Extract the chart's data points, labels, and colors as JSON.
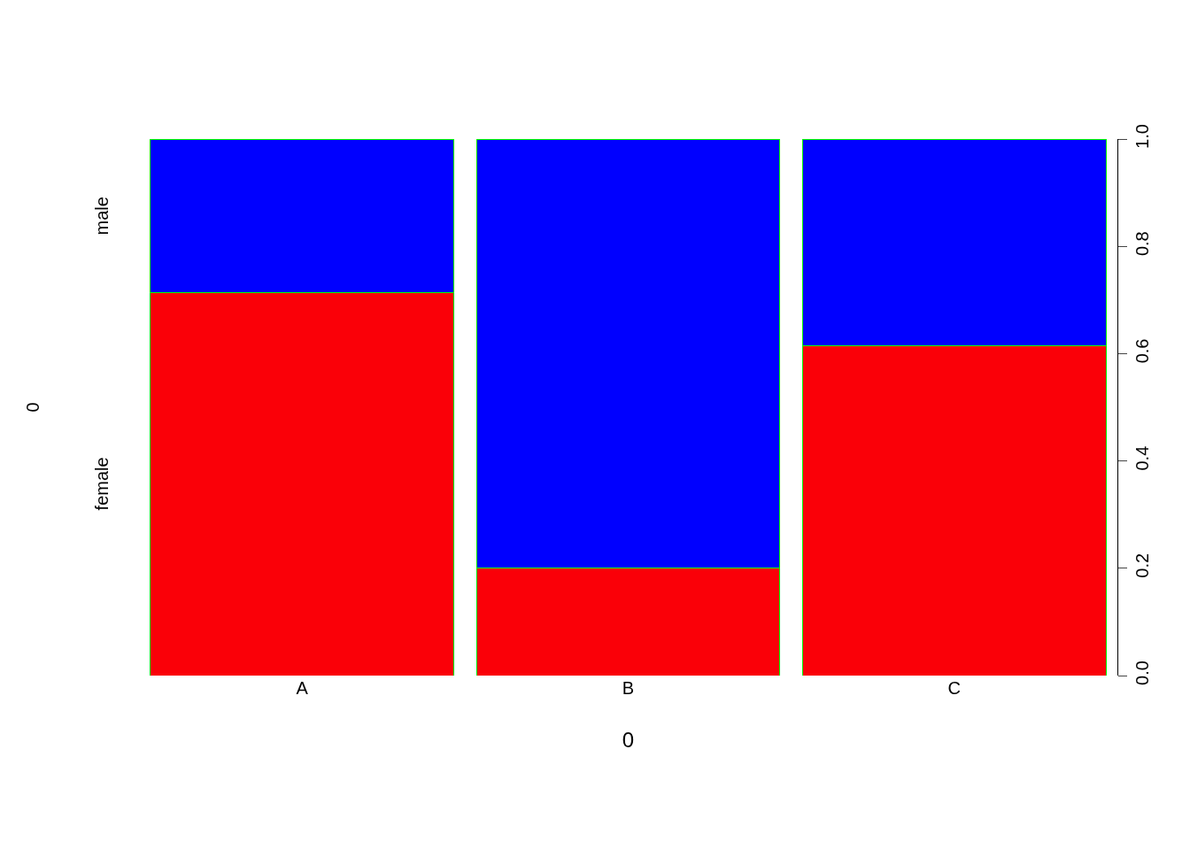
{
  "chart_data": {
    "type": "bar",
    "stacked": true,
    "xlabel": "0",
    "annotations": [
      "0"
    ],
    "categories": [
      "A",
      "B",
      "C"
    ],
    "series": [
      {
        "name": "female",
        "color": "#fa0008",
        "values": [
          0.714,
          0.2,
          0.615
        ]
      },
      {
        "name": "male",
        "color": "#0000ff",
        "values": [
          0.286,
          0.8,
          0.385
        ]
      }
    ],
    "ylim": [
      0,
      1
    ],
    "yticks": [
      {
        "value": 0,
        "label": "0.0"
      },
      {
        "value": 0.2,
        "label": "0.2"
      },
      {
        "value": 0.4,
        "label": "0.4"
      },
      {
        "value": 0.6,
        "label": "0.6"
      },
      {
        "value": 0.8,
        "label": "0.8"
      },
      {
        "value": 1,
        "label": "1.0"
      }
    ],
    "legend": false
  }
}
